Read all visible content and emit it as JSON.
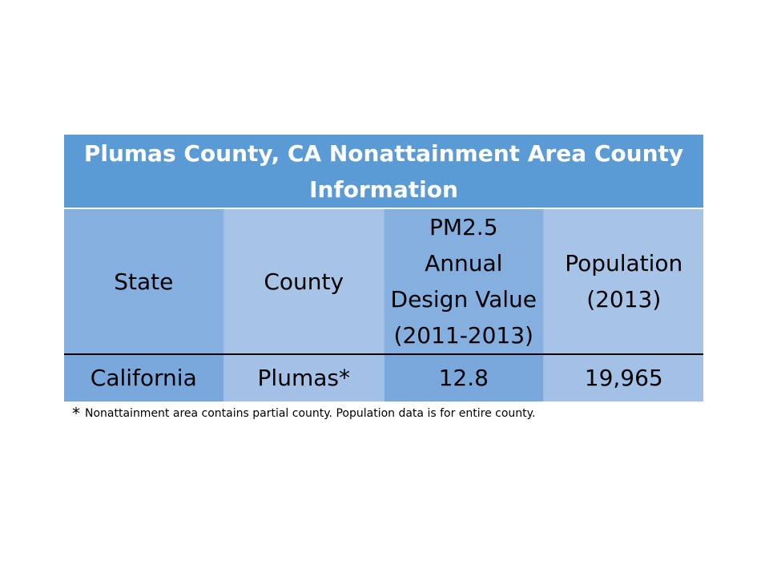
{
  "table": {
    "title": "Plumas County, CA Nonattainment Area County Information",
    "headers": {
      "state": "State",
      "county": "County",
      "pm_line1": "PM2.5",
      "pm_line2": "Annual",
      "pm_line3": "Design Value",
      "pm_line4": "(2011-2013)",
      "pop_line1": "Population",
      "pop_line2": "(2013)"
    },
    "row": {
      "state": "California",
      "county": "Plumas*",
      "design_value": "12.8",
      "population": "19,965"
    }
  },
  "footnote": {
    "marker": "*",
    "text": "Nonattainment area contains partial county.  Population data is for entire county."
  }
}
